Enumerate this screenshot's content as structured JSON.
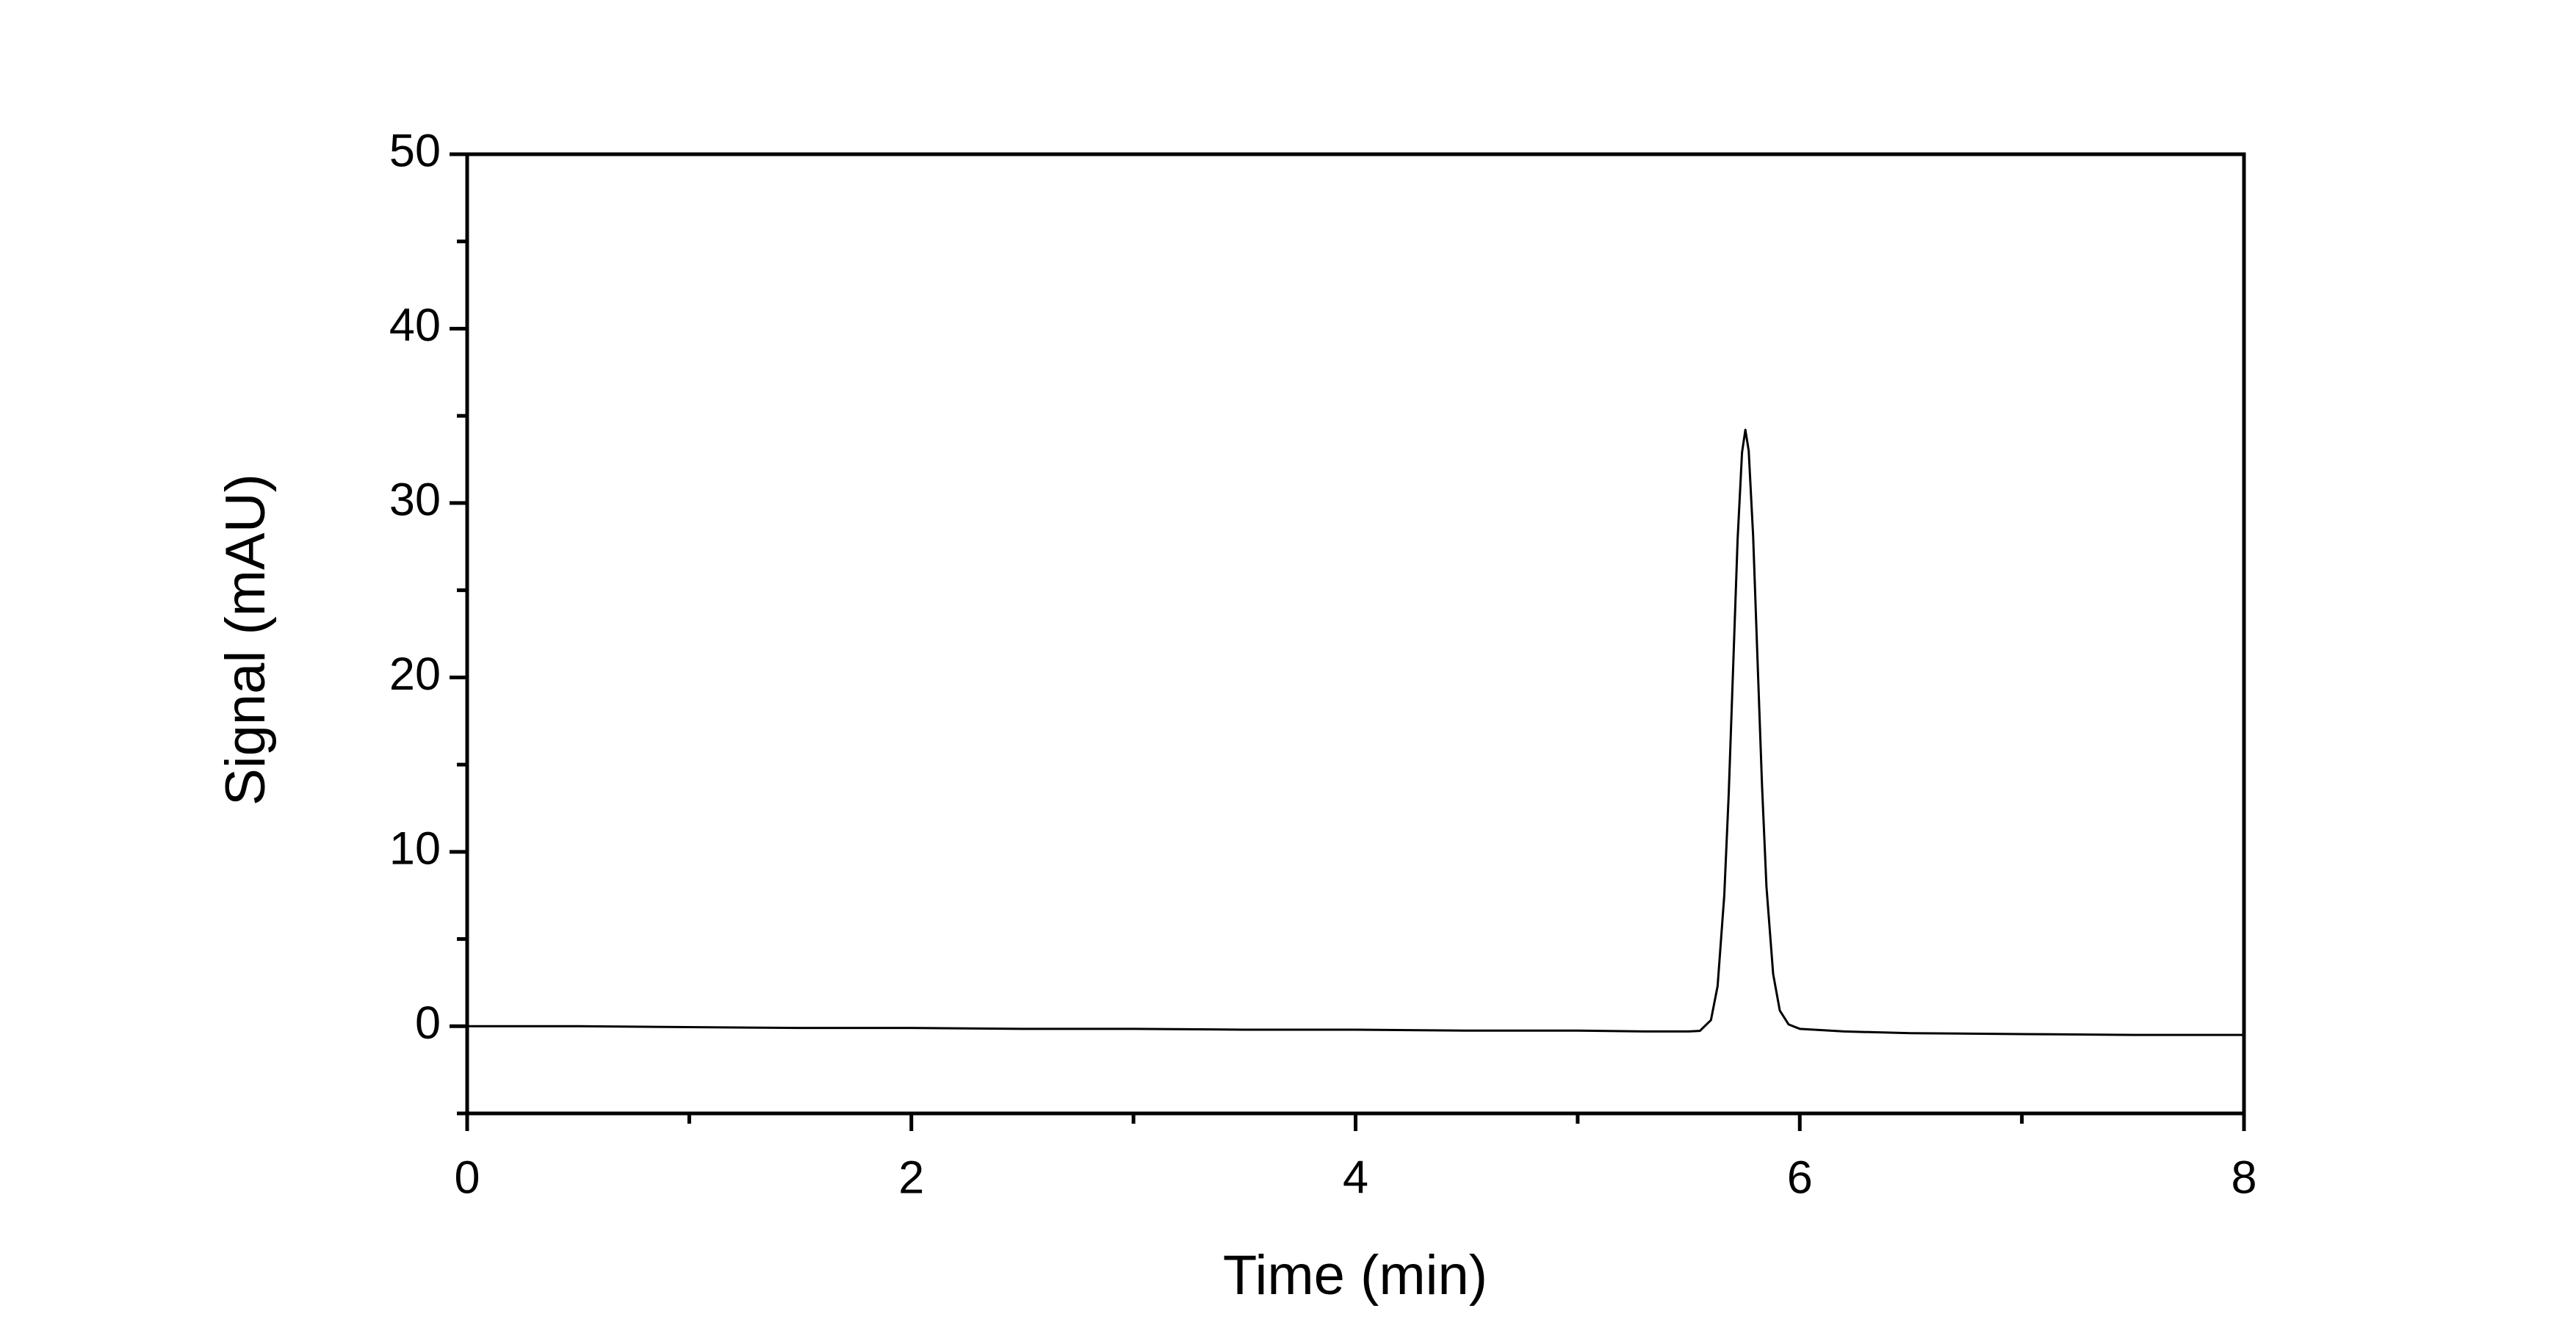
{
  "chart_data": {
    "type": "line",
    "xlabel": "Time (min)",
    "ylabel": "Signal (mAU)",
    "x": [
      0,
      0.5,
      1,
      1.5,
      2,
      2.5,
      3,
      3.5,
      4,
      4.5,
      5,
      5.3,
      5.5,
      5.55,
      5.6,
      5.63,
      5.66,
      5.68,
      5.7,
      5.72,
      5.74,
      5.755,
      5.77,
      5.79,
      5.81,
      5.83,
      5.85,
      5.88,
      5.91,
      5.95,
      6,
      6.2,
      6.5,
      7,
      7.5,
      8
    ],
    "values": [
      0,
      0,
      -0.05,
      -0.1,
      -0.1,
      -0.15,
      -0.15,
      -0.2,
      -0.2,
      -0.25,
      -0.25,
      -0.3,
      -0.3,
      -0.27,
      0.35,
      2.3,
      7.5,
      13.3,
      20.6,
      27.9,
      32.9,
      34.2,
      33,
      28.1,
      20.9,
      13.8,
      8,
      3,
      0.9,
      0.1,
      -0.15,
      -0.3,
      -0.4,
      -0.45,
      -0.5,
      -0.5
    ],
    "color": "#000000",
    "xlim": [
      0,
      8
    ],
    "xticks": [
      0,
      2,
      4,
      6,
      8
    ],
    "xminorticks": [
      1,
      3,
      5,
      7
    ],
    "ylim": [
      -5,
      50
    ],
    "yticks": [
      0,
      10,
      20,
      30,
      40,
      50
    ],
    "yminorticks": [
      -5,
      5,
      15,
      25,
      35,
      45
    ],
    "grid": false
  }
}
